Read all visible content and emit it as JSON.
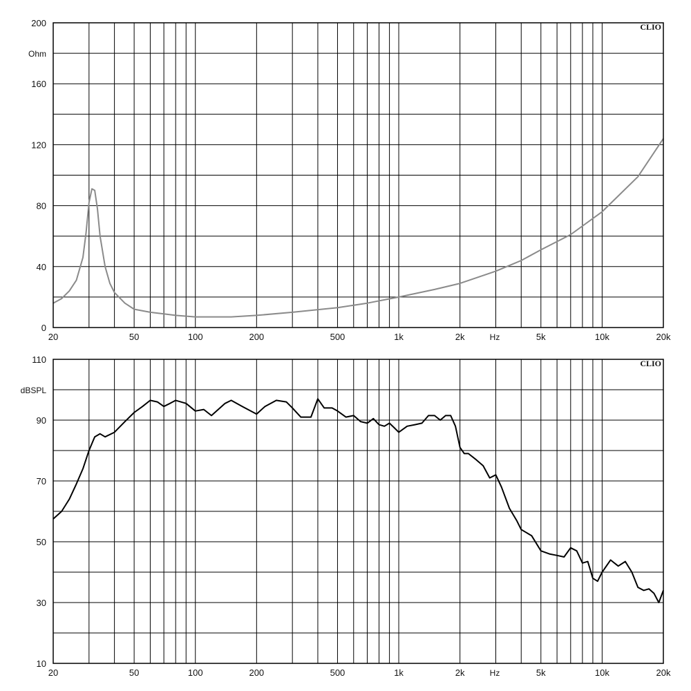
{
  "chart_data": [
    {
      "type": "line",
      "title": "",
      "brand": "CLIO",
      "ylabel": "Ohm",
      "xlabel": "Hz",
      "x_scale": "log",
      "xlim": [
        20,
        20000
      ],
      "ylim": [
        0,
        200
      ],
      "y_tick_labels": [
        "200",
        "160",
        "120",
        "80",
        "40",
        "0"
      ],
      "x_tick_labels": [
        {
          "x": 20,
          "label": "20"
        },
        {
          "x": 50,
          "label": "50"
        },
        {
          "x": 100,
          "label": "100"
        },
        {
          "x": 200,
          "label": "200"
        },
        {
          "x": 500,
          "label": "500"
        },
        {
          "x": 1000,
          "label": "1k"
        },
        {
          "x": 2000,
          "label": "2k"
        },
        {
          "x": 5000,
          "label": "5k"
        },
        {
          "x": 10000,
          "label": "10k"
        },
        {
          "x": 20000,
          "label": "20k"
        }
      ],
      "line_color": "#8a8a8a",
      "grid": true,
      "series": [
        {
          "x": [
            20,
            22,
            24,
            26,
            28,
            29,
            30,
            31,
            32,
            33,
            34,
            36,
            38,
            40,
            45,
            50,
            60,
            70,
            80,
            100,
            120,
            150,
            200,
            300,
            500,
            700,
            1000,
            1500,
            2000,
            3000,
            4000,
            5000,
            7000,
            10000,
            15000,
            20000
          ],
          "y": [
            16,
            19,
            24,
            31,
            46,
            62,
            82,
            91,
            90,
            78,
            60,
            40,
            29,
            23,
            16,
            12,
            10,
            9,
            8,
            7,
            7,
            7,
            8,
            10,
            13,
            16,
            20,
            25,
            29,
            37,
            44,
            51,
            61,
            76,
            99,
            124
          ]
        }
      ]
    },
    {
      "type": "line",
      "title": "",
      "brand": "CLIO",
      "ylabel": "dBSPL",
      "xlabel": "Hz",
      "x_scale": "log",
      "xlim": [
        20,
        20000
      ],
      "ylim": [
        10,
        110
      ],
      "y_tick_labels": [
        "110",
        "90",
        "70",
        "50",
        "30",
        "10"
      ],
      "x_tick_labels": [
        {
          "x": 20,
          "label": "20"
        },
        {
          "x": 50,
          "label": "50"
        },
        {
          "x": 100,
          "label": "100"
        },
        {
          "x": 200,
          "label": "200"
        },
        {
          "x": 500,
          "label": "500"
        },
        {
          "x": 1000,
          "label": "1k"
        },
        {
          "x": 2000,
          "label": "2k"
        },
        {
          "x": 5000,
          "label": "5k"
        },
        {
          "x": 10000,
          "label": "10k"
        },
        {
          "x": 20000,
          "label": "20k"
        }
      ],
      "line_color": "#000000",
      "grid": true,
      "series": [
        {
          "x": [
            20,
            22,
            24,
            26,
            28,
            30,
            32,
            34,
            36,
            40,
            45,
            50,
            55,
            60,
            65,
            70,
            75,
            80,
            90,
            100,
            110,
            120,
            140,
            150,
            170,
            200,
            220,
            250,
            280,
            300,
            330,
            370,
            400,
            430,
            470,
            500,
            550,
            600,
            650,
            700,
            750,
            800,
            850,
            900,
            950,
            1000,
            1100,
            1200,
            1300,
            1400,
            1500,
            1600,
            1700,
            1800,
            1900,
            2000,
            2100,
            2200,
            2400,
            2600,
            2800,
            3000,
            3200,
            3500,
            3800,
            4000,
            4500,
            5000,
            5500,
            6000,
            6500,
            7000,
            7500,
            8000,
            8500,
            9000,
            9500,
            10000,
            11000,
            12000,
            13000,
            14000,
            15000,
            16000,
            17000,
            18000,
            19000,
            20000
          ],
          "y": [
            57.5,
            60,
            64,
            69,
            74,
            80,
            84.5,
            85.5,
            84.5,
            86,
            89.5,
            92.5,
            94.5,
            96.5,
            96,
            94.5,
            95.5,
            96.5,
            95.5,
            93,
            93.5,
            91.5,
            95.5,
            96.5,
            94.5,
            92,
            94.5,
            96.5,
            96,
            94,
            91,
            91,
            97,
            94,
            94,
            93,
            91,
            91.5,
            89.5,
            89,
            90.5,
            88.5,
            88,
            89,
            87.5,
            86,
            88,
            88.5,
            89,
            91.5,
            91.5,
            90,
            91.5,
            91.5,
            88,
            81,
            79,
            79,
            77,
            75,
            71,
            72,
            68,
            61,
            57,
            54,
            52,
            47,
            46,
            45.5,
            45,
            48,
            47,
            43,
            43.5,
            38,
            37,
            40,
            44,
            42,
            43.5,
            40,
            35,
            34,
            34.5,
            33,
            30,
            34
          ]
        }
      ]
    }
  ]
}
